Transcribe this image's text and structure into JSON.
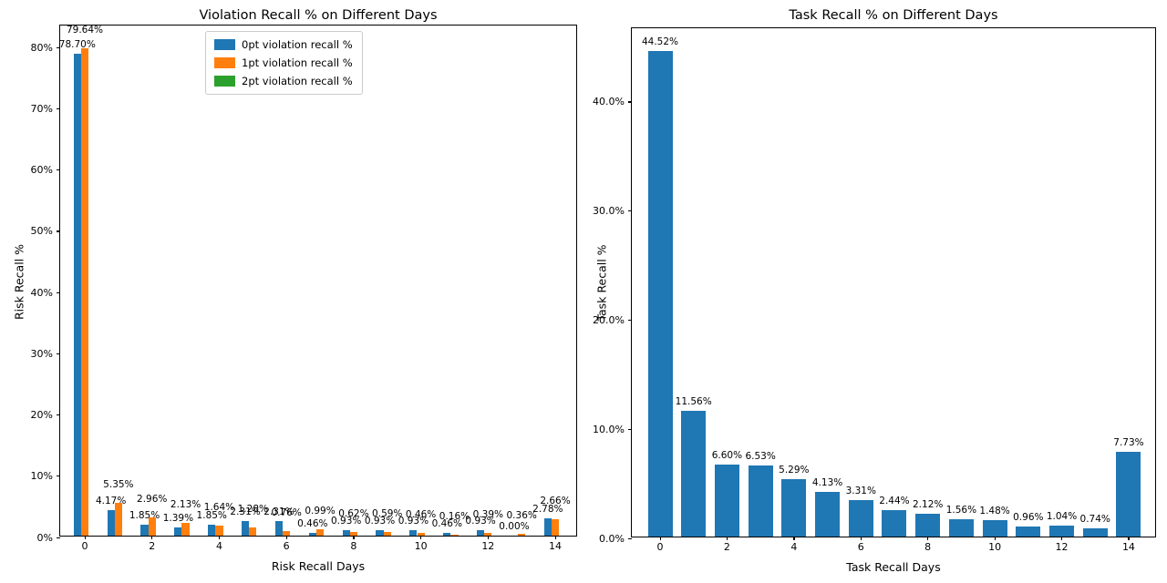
{
  "figure": {
    "background": "#ffffff"
  },
  "colors": {
    "blue": "#1f77b4",
    "orange": "#ff7f0e",
    "green": "#2ca02c"
  },
  "chart_data": [
    {
      "id": "violation",
      "type": "bar",
      "title": "Violation Recall % on Different Days",
      "xlabel": "Risk Recall Days",
      "ylabel": "Risk Recall %",
      "categories": [
        0,
        1,
        2,
        3,
        4,
        5,
        6,
        7,
        8,
        9,
        10,
        11,
        12,
        13,
        14
      ],
      "xtick_positions": [
        0,
        2,
        4,
        6,
        8,
        10,
        12,
        14
      ],
      "xtick_labels": [
        "0",
        "2",
        "4",
        "6",
        "8",
        "10",
        "12",
        "14"
      ],
      "ytick_values": [
        0,
        10,
        20,
        30,
        40,
        50,
        60,
        70,
        80
      ],
      "ytick_labels": [
        "0%",
        "10%",
        "20%",
        "30%",
        "40%",
        "50%",
        "60%",
        "70%",
        "80%"
      ],
      "ylim": [
        0,
        83.62
      ],
      "grid": false,
      "legend_position": "upper center (inside axes)",
      "series": [
        {
          "name": "0pt violation recall %",
          "color": "#1f77b4",
          "values": [
            78.7,
            4.17,
            1.85,
            1.39,
            1.85,
            2.31,
            2.31,
            0.46,
            0.93,
            0.93,
            0.93,
            0.46,
            0.93,
            0.0,
            2.78
          ],
          "labels": [
            "78.70%",
            "4.17%",
            "1.85%",
            "1.39%",
            "1.85%",
            "2.31%",
            "2.31%",
            "0.46%",
            "0.93%",
            "0.93%",
            "0.93%",
            "0.46%",
            "0.93%",
            "0.00%",
            "2.78%"
          ],
          "label_dy": 3
        },
        {
          "name": "1pt violation recall %",
          "color": "#ff7f0e",
          "values": [
            79.64,
            5.35,
            2.96,
            2.13,
            1.64,
            1.28,
            0.76,
            0.99,
            0.62,
            0.59,
            0.46,
            0.16,
            0.39,
            0.36,
            2.66
          ],
          "labels": [
            "79.64%",
            "5.35%",
            "2.96%",
            "2.13%",
            "1.64%",
            "1.28%",
            "0.76%",
            "0.99%",
            "0.62%",
            "0.59%",
            "0.46%",
            "0.16%",
            "0.39%",
            "0.36%",
            "2.66%"
          ],
          "label_dy": 13
        },
        {
          "name": "2pt violation recall %",
          "color": "#2ca02c",
          "values": [
            0,
            0,
            0,
            0,
            0,
            0,
            0,
            0,
            0,
            0,
            0,
            0,
            0,
            0,
            0
          ],
          "labels": null,
          "label_dy": 3
        }
      ]
    },
    {
      "id": "task",
      "type": "bar",
      "title": "Task Recall % on Different Days",
      "xlabel": "Task Recall Days",
      "ylabel": "Task Recall %",
      "categories": [
        0,
        1,
        2,
        3,
        4,
        5,
        6,
        7,
        8,
        9,
        10,
        11,
        12,
        13,
        14
      ],
      "xtick_positions": [
        0,
        2,
        4,
        6,
        8,
        10,
        12,
        14
      ],
      "xtick_labels": [
        "0",
        "2",
        "4",
        "6",
        "8",
        "10",
        "12",
        "14"
      ],
      "ytick_values": [
        0,
        10,
        20,
        30,
        40
      ],
      "ytick_labels": [
        "0.0%",
        "10.0%",
        "20.0%",
        "30.0%",
        "40.0%"
      ],
      "ylim": [
        0,
        46.75
      ],
      "grid": false,
      "legend_position": null,
      "series": [
        {
          "name": "task recall %",
          "color": "#1f77b4",
          "values": [
            44.52,
            11.56,
            6.6,
            6.53,
            5.29,
            4.13,
            3.31,
            2.44,
            2.12,
            1.56,
            1.48,
            0.96,
            1.04,
            0.74,
            7.73
          ],
          "labels": [
            "44.52%",
            "11.56%",
            "6.60%",
            "6.53%",
            "5.29%",
            "4.13%",
            "3.31%",
            "2.44%",
            "2.12%",
            "1.56%",
            "1.48%",
            "0.96%",
            "1.04%",
            "0.74%",
            "7.73%"
          ],
          "label_dy": 3
        }
      ]
    }
  ]
}
